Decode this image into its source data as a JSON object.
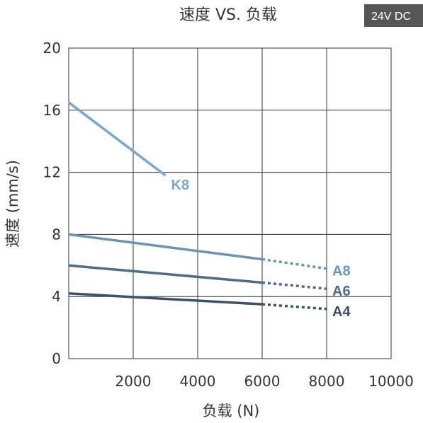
{
  "badge": "24V DC",
  "chart_data": {
    "type": "line",
    "title": "速度 VS. 负载",
    "xlabel": "负载 (N)",
    "ylabel": "速度 (mm/s)",
    "xlim": [
      0,
      10000
    ],
    "ylim": [
      0,
      20
    ],
    "x_ticks": [
      2000,
      4000,
      6000,
      8000,
      10000
    ],
    "x_tick_labels": [
      "2000",
      "4000",
      "6000",
      "8000",
      "10000"
    ],
    "y_ticks": [
      0,
      4,
      8,
      12,
      16,
      20
    ],
    "y_tick_labels": [
      "0",
      "4",
      "8",
      "12",
      "16",
      "20"
    ],
    "grid": true,
    "series": [
      {
        "name": "K8",
        "color": "#7ba7cc",
        "solid": [
          [
            0,
            16.5
          ],
          [
            3000,
            11.8
          ]
        ],
        "dashed": []
      },
      {
        "name": "A8",
        "color": "#6b93b8",
        "solid": [
          [
            0,
            8.0
          ],
          [
            6000,
            6.4
          ]
        ],
        "dashed": [
          [
            6000,
            6.4
          ],
          [
            8000,
            5.8
          ]
        ]
      },
      {
        "name": "A6",
        "color": "#4d6c8a",
        "solid": [
          [
            0,
            6.0
          ],
          [
            6000,
            4.9
          ]
        ],
        "dashed": [
          [
            6000,
            4.9
          ],
          [
            8000,
            4.5
          ]
        ]
      },
      {
        "name": "A4",
        "color": "#3d5166",
        "solid": [
          [
            0,
            4.2
          ],
          [
            6000,
            3.5
          ]
        ],
        "dashed": [
          [
            6000,
            3.5
          ],
          [
            8000,
            3.2
          ]
        ]
      }
    ]
  }
}
